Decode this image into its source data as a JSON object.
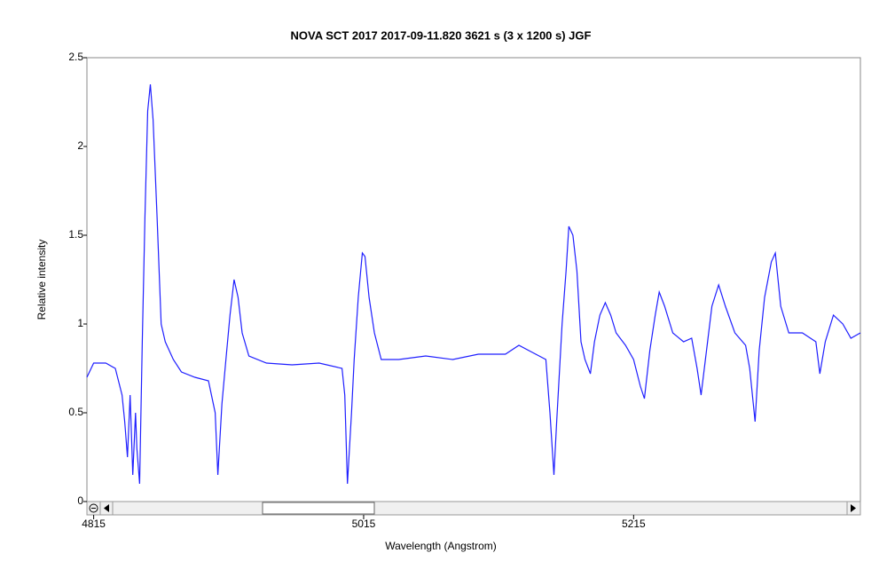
{
  "chart_data": {
    "type": "line",
    "title": "NOVA SCT 2017   2017-09-11.820   3621 s (3 x 1200 s)   JGF",
    "x_label": "Wavelength (Angstrom)",
    "y_label": "Relative intensity",
    "xlim": [
      4810,
      5383
    ],
    "ylim": [
      0,
      2.5
    ],
    "xticks": [
      4815,
      5015,
      5215
    ],
    "yticks": [
      0,
      0.5,
      1,
      1.5,
      2,
      2.5
    ],
    "series": [
      {
        "color": "#1f1fff",
        "x": [
          4810,
          4815,
          4824,
          4831,
          4836,
          4838,
          4840,
          4842,
          4844,
          4846,
          4847,
          4849,
          4851,
          4853,
          4855,
          4857,
          4859,
          4862,
          4865,
          4868,
          4874,
          4880,
          4890,
          4900,
          4905,
          4907,
          4910,
          4913,
          4916,
          4919,
          4922,
          4925,
          4930,
          4943,
          4962,
          4982,
          4999,
          5001,
          5003,
          5006,
          5008,
          5011,
          5014,
          5016,
          5019,
          5023,
          5028,
          5041,
          5061,
          5081,
          5100,
          5120,
          5130,
          5140,
          5150,
          5153,
          5156,
          5158,
          5162,
          5165,
          5167,
          5170,
          5173,
          5176,
          5179,
          5183,
          5186,
          5190,
          5194,
          5198,
          5202,
          5209,
          5215,
          5220,
          5223,
          5227,
          5231,
          5234,
          5238,
          5244,
          5252,
          5258,
          5262,
          5265,
          5269,
          5273,
          5278,
          5283,
          5290,
          5298,
          5301,
          5305,
          5308,
          5312,
          5317,
          5320,
          5324,
          5330,
          5340,
          5350,
          5353,
          5357,
          5363,
          5370,
          5376,
          5383
        ],
        "values": [
          0.7,
          0.78,
          0.78,
          0.75,
          0.6,
          0.45,
          0.25,
          0.6,
          0.15,
          0.5,
          0.3,
          0.1,
          0.9,
          1.6,
          2.2,
          2.35,
          2.15,
          1.6,
          1.0,
          0.9,
          0.8,
          0.73,
          0.7,
          0.68,
          0.5,
          0.15,
          0.55,
          0.8,
          1.05,
          1.25,
          1.15,
          0.95,
          0.82,
          0.78,
          0.77,
          0.78,
          0.75,
          0.6,
          0.1,
          0.5,
          0.8,
          1.15,
          1.4,
          1.38,
          1.15,
          0.95,
          0.8,
          0.8,
          0.82,
          0.8,
          0.83,
          0.83,
          0.88,
          0.84,
          0.8,
          0.5,
          0.15,
          0.45,
          1.0,
          1.3,
          1.55,
          1.5,
          1.3,
          0.9,
          0.8,
          0.72,
          0.9,
          1.05,
          1.12,
          1.05,
          0.95,
          0.88,
          0.8,
          0.65,
          0.58,
          0.85,
          1.05,
          1.18,
          1.1,
          0.95,
          0.9,
          0.92,
          0.75,
          0.6,
          0.85,
          1.1,
          1.22,
          1.1,
          0.95,
          0.88,
          0.75,
          0.45,
          0.85,
          1.15,
          1.35,
          1.4,
          1.1,
          0.95,
          0.95,
          0.9,
          0.72,
          0.9,
          1.05,
          1.0,
          0.92,
          0.95
        ]
      }
    ]
  }
}
